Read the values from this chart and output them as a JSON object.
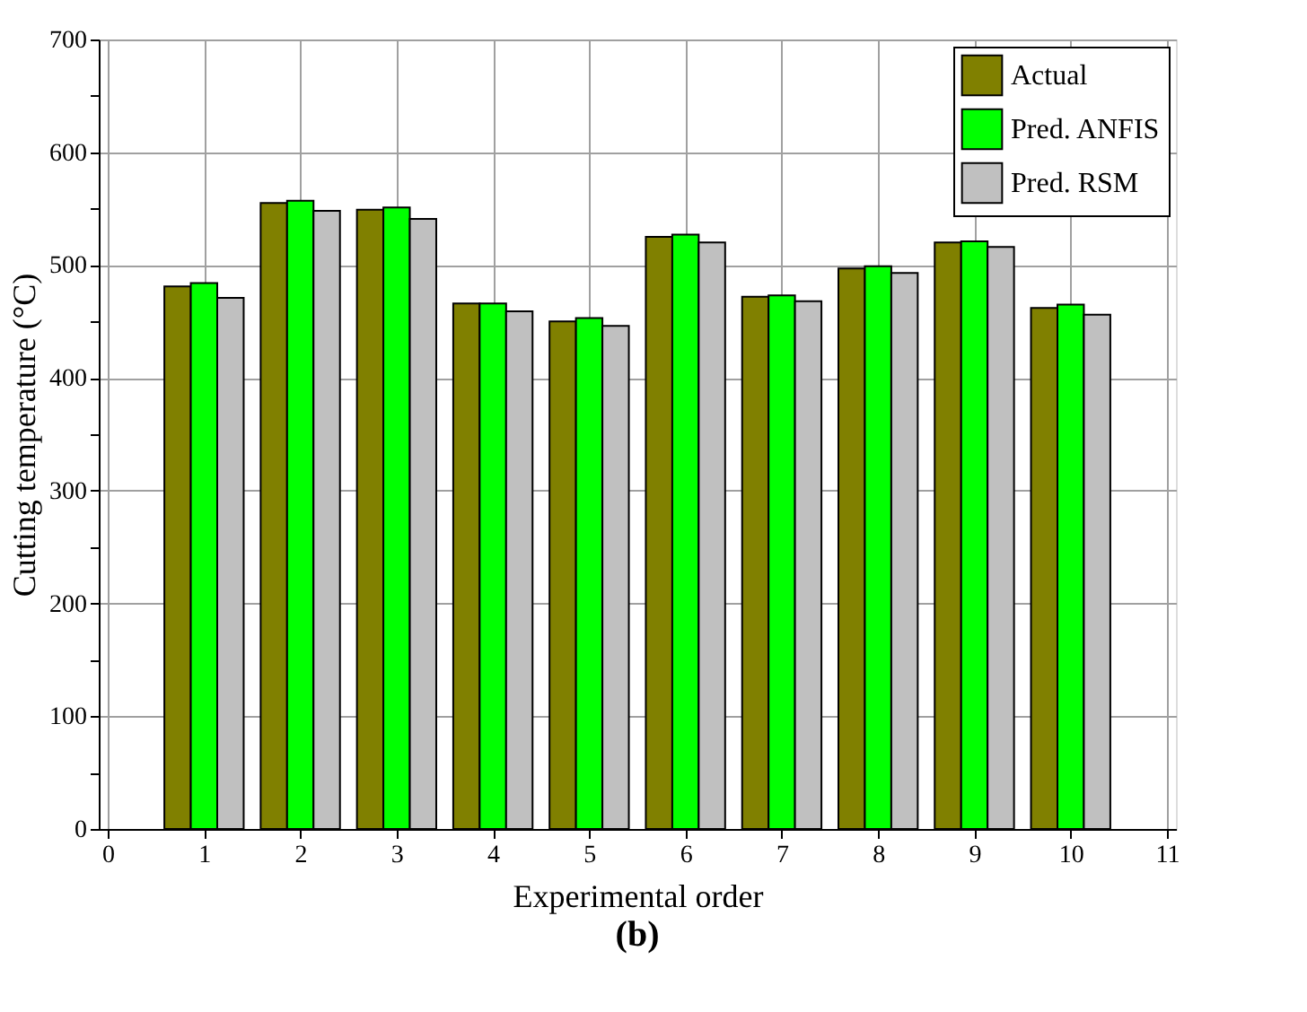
{
  "chart_data": {
    "type": "bar",
    "xlabel": "Experimental order",
    "ylabel": "Cutting temperature (°C)",
    "x": [
      1,
      2,
      3,
      4,
      5,
      6,
      7,
      8,
      9,
      10
    ],
    "series": [
      {
        "name": "Actual",
        "color": "#808000",
        "values": [
          481,
          555,
          549,
          466,
          450,
          525,
          472,
          497,
          520,
          462
        ]
      },
      {
        "name": "Pred. ANFIS",
        "color": "#00ff00",
        "values": [
          484,
          557,
          551,
          466,
          453,
          527,
          473,
          499,
          521,
          465
        ]
      },
      {
        "name": "Pred. RSM",
        "color": "#c0c0c0",
        "values": [
          471,
          548,
          541,
          459,
          446,
          520,
          468,
          493,
          516,
          456
        ]
      }
    ],
    "xlim": [
      0,
      11
    ],
    "xticks": [
      0,
      1,
      2,
      3,
      4,
      5,
      6,
      7,
      8,
      9,
      10,
      11
    ],
    "ylim": [
      0,
      700
    ],
    "yticks": [
      0,
      {
        "value": 50,
        "label": null
      },
      100,
      {
        "value": 150,
        "label": null
      },
      200,
      {
        "value": 250,
        "label": null
      },
      300,
      {
        "value": 350,
        "label": null
      },
      400,
      {
        "value": 450,
        "label": null
      },
      500,
      {
        "value": 550,
        "label": null
      },
      600,
      {
        "value": 650,
        "label": null
      },
      700
    ],
    "grid": true,
    "legend": "top right",
    "annotations": [
      "(b)"
    ]
  }
}
